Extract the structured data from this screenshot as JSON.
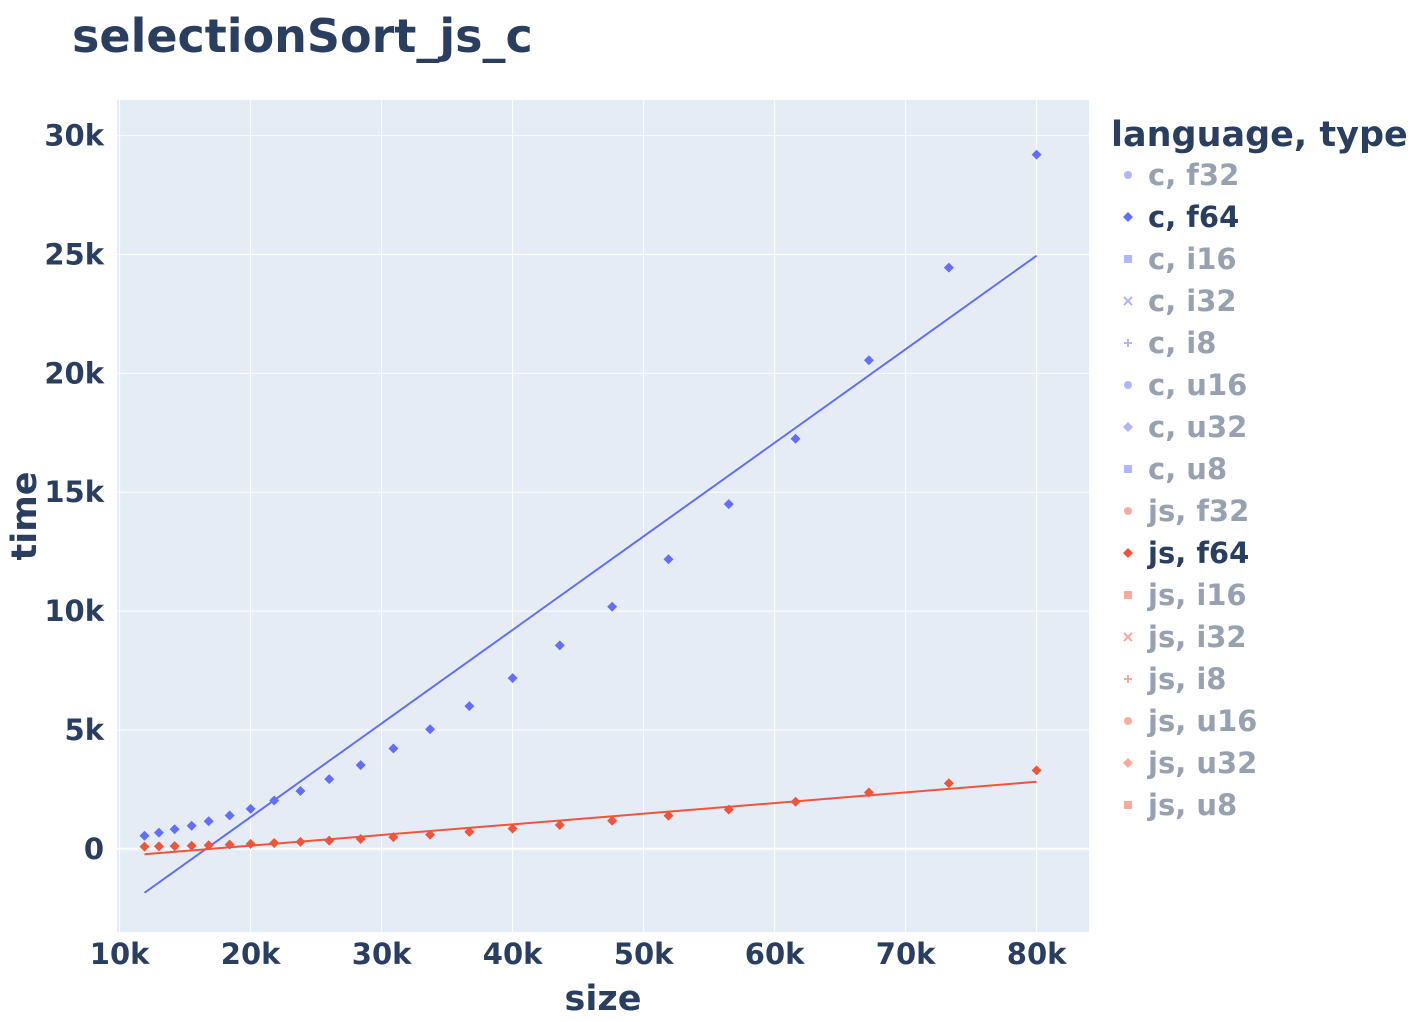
{
  "chart_data": {
    "type": "scatter",
    "title": "selectionSort_js_c",
    "xlabel": "size",
    "ylabel": "time",
    "xlim": [
      9800,
      84000
    ],
    "ylim": [
      -3500,
      31500
    ],
    "x_ticks": [
      10000,
      20000,
      30000,
      40000,
      50000,
      60000,
      70000,
      80000
    ],
    "x_tick_labels": [
      "10k",
      "20k",
      "30k",
      "40k",
      "50k",
      "60k",
      "70k",
      "80k"
    ],
    "y_ticks": [
      0,
      5000,
      10000,
      15000,
      20000,
      25000,
      30000
    ],
    "y_tick_labels": [
      "0",
      "5k",
      "10k",
      "15k",
      "20k",
      "25k",
      "30k"
    ],
    "grid": true,
    "legend": {
      "title": "language, type",
      "placement": "right",
      "entries": [
        {
          "label": "c, f32",
          "color": "#636efa",
          "symbol": "circle",
          "visible": false
        },
        {
          "label": "c, f64",
          "color": "#636efa",
          "symbol": "diamond",
          "visible": true
        },
        {
          "label": "c, i16",
          "color": "#636efa",
          "symbol": "square",
          "visible": false
        },
        {
          "label": "c, i32",
          "color": "#636efa",
          "symbol": "x",
          "visible": false
        },
        {
          "label": "c, i8",
          "color": "#636efa",
          "symbol": "cross",
          "visible": false
        },
        {
          "label": "c, u16",
          "color": "#636efa",
          "symbol": "circle",
          "visible": false
        },
        {
          "label": "c, u32",
          "color": "#636efa",
          "symbol": "diamond",
          "visible": false
        },
        {
          "label": "c, u8",
          "color": "#636efa",
          "symbol": "square",
          "visible": false
        },
        {
          "label": "js, f32",
          "color": "#ef553b",
          "symbol": "circle",
          "visible": false
        },
        {
          "label": "js, f64",
          "color": "#ef553b",
          "symbol": "diamond",
          "visible": true
        },
        {
          "label": "js, i16",
          "color": "#ef553b",
          "symbol": "square",
          "visible": false
        },
        {
          "label": "js, i32",
          "color": "#ef553b",
          "symbol": "x",
          "visible": false
        },
        {
          "label": "js, i8",
          "color": "#ef553b",
          "symbol": "cross",
          "visible": false
        },
        {
          "label": "js, u16",
          "color": "#ef553b",
          "symbol": "circle",
          "visible": false
        },
        {
          "label": "js, u32",
          "color": "#ef553b",
          "symbol": "diamond",
          "visible": false
        },
        {
          "label": "js, u8",
          "color": "#ef553b",
          "symbol": "square",
          "visible": false
        }
      ]
    },
    "series": [
      {
        "name": "c, f64",
        "color": "#636efa",
        "symbol": "diamond",
        "x": [
          11900,
          13000,
          14200,
          15500,
          16800,
          18400,
          20000,
          21800,
          23800,
          26000,
          28400,
          30900,
          33700,
          36700,
          40000,
          43600,
          47600,
          51900,
          56500,
          61600,
          67200,
          73300,
          80000
        ],
        "y": [
          550,
          680,
          820,
          970,
          1160,
          1400,
          1680,
          2030,
          2430,
          2930,
          3520,
          4220,
          5030,
          6000,
          7180,
          8560,
          10180,
          12180,
          14500,
          17250,
          20550,
          24450,
          29200
        ],
        "trendline": {
          "x": [
            11900,
            80000
          ],
          "y": [
            -1850,
            24950
          ]
        }
      },
      {
        "name": "js, f64",
        "color": "#ef553b",
        "symbol": "diamond",
        "x": [
          11900,
          13000,
          14200,
          15500,
          16800,
          18400,
          20000,
          21800,
          23800,
          26000,
          28400,
          30900,
          33700,
          36700,
          40000,
          43600,
          47600,
          51900,
          56500,
          61600,
          67200,
          73300,
          80000
        ],
        "y": [
          90,
          100,
          115,
          130,
          150,
          175,
          205,
          245,
          290,
          345,
          410,
          490,
          590,
          710,
          850,
          1000,
          1180,
          1390,
          1650,
          1980,
          2370,
          2760,
          3300
        ],
        "trendline": {
          "x": [
            11900,
            80000
          ],
          "y": [
            -230,
            2820
          ]
        }
      }
    ]
  }
}
